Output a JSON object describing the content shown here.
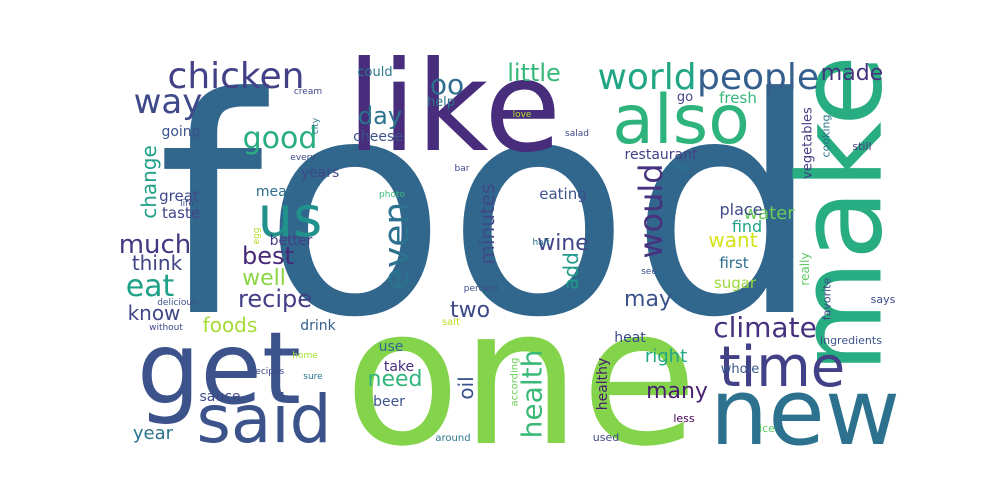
{
  "wordcloud": {
    "words": [
      {
        "text": "food",
        "color": "#31668d"
      },
      {
        "text": "one",
        "color": "#84d44b"
      },
      {
        "text": "like",
        "color": "#472d7b"
      },
      {
        "text": "make",
        "color": "#27ad81"
      },
      {
        "text": "get",
        "color": "#3b528b"
      },
      {
        "text": "new",
        "color": "#2c728e"
      },
      {
        "text": "also",
        "color": "#2eb37c"
      },
      {
        "text": "said",
        "color": "#3b528b"
      },
      {
        "text": "time",
        "color": "#424086"
      },
      {
        "text": "us",
        "color": "#21918c"
      },
      {
        "text": "world",
        "color": "#21a685"
      },
      {
        "text": "people",
        "color": "#355f8d"
      },
      {
        "text": "chicken",
        "color": "#424086"
      },
      {
        "text": "way",
        "color": "#3e4989"
      },
      {
        "text": "good",
        "color": "#28ae80"
      },
      {
        "text": "even",
        "color": "#2c728e"
      },
      {
        "text": "would",
        "color": "#46327e"
      },
      {
        "text": "health",
        "color": "#3aba76"
      },
      {
        "text": "climate",
        "color": "#46327e"
      },
      {
        "text": "eat",
        "color": "#1fa188"
      },
      {
        "text": "much",
        "color": "#453882"
      },
      {
        "text": "best",
        "color": "#482878"
      },
      {
        "text": "recipe",
        "color": "#433e85"
      },
      {
        "text": "little",
        "color": "#37b878"
      },
      {
        "text": "made",
        "color": "#46327e"
      },
      {
        "text": "oo",
        "color": "#2f6c8e"
      },
      {
        "text": "day",
        "color": "#2c728e"
      },
      {
        "text": "wine",
        "color": "#404688"
      },
      {
        "text": "minutes",
        "color": "#3e4989"
      },
      {
        "text": "add",
        "color": "#1f998a"
      },
      {
        "text": "two",
        "color": "#3e4989"
      },
      {
        "text": "may",
        "color": "#3b528b"
      },
      {
        "text": "think",
        "color": "#414487"
      },
      {
        "text": "well",
        "color": "#8bd646"
      },
      {
        "text": "know",
        "color": "#3f4788"
      },
      {
        "text": "foods",
        "color": "#a5db36"
      },
      {
        "text": "change",
        "color": "#1fa088"
      },
      {
        "text": "water",
        "color": "#6ccd5a"
      },
      {
        "text": "want",
        "color": "#d5e21a"
      },
      {
        "text": "need",
        "color": "#31b57b"
      },
      {
        "text": "many",
        "color": "#481f70"
      },
      {
        "text": "oil",
        "color": "#3b528b"
      },
      {
        "text": "year",
        "color": "#2c728e"
      },
      {
        "text": "right",
        "color": "#22a785"
      },
      {
        "text": "place",
        "color": "#3e4a89"
      },
      {
        "text": "find",
        "color": "#20a386"
      },
      {
        "text": "first",
        "color": "#2e6f8e"
      },
      {
        "text": "sugar",
        "color": "#9dd93b"
      },
      {
        "text": "eating",
        "color": "#3b528b"
      },
      {
        "text": "great",
        "color": "#3e4989"
      },
      {
        "text": "taste",
        "color": "#414487"
      },
      {
        "text": "restaurant",
        "color": "#424186"
      },
      {
        "text": "years",
        "color": "#3f4889"
      },
      {
        "text": "meat",
        "color": "#2d708e"
      },
      {
        "text": "better",
        "color": "#433e85"
      },
      {
        "text": "going",
        "color": "#3b528b"
      },
      {
        "text": "cheese",
        "color": "#3b528b"
      },
      {
        "text": "could",
        "color": "#2a788e"
      },
      {
        "text": "help",
        "color": "#2d718e"
      },
      {
        "text": "fresh",
        "color": "#35b779"
      },
      {
        "text": "go",
        "color": "#414487"
      },
      {
        "text": "drink",
        "color": "#355f8d"
      },
      {
        "text": "heat",
        "color": "#3e4989"
      },
      {
        "text": "use",
        "color": "#31688e"
      },
      {
        "text": "take",
        "color": "#472f7d"
      },
      {
        "text": "beer",
        "color": "#3b528b"
      },
      {
        "text": "sauce",
        "color": "#3e4989"
      },
      {
        "text": "healthy",
        "color": "#481b6d"
      },
      {
        "text": "whole",
        "color": "#38598c"
      },
      {
        "text": "vegetables",
        "color": "#433e85"
      },
      {
        "text": "really",
        "color": "#5ec962"
      },
      {
        "text": "cooking",
        "color": "#2a768e"
      },
      {
        "text": "still",
        "color": "#443b84"
      },
      {
        "text": "favorite",
        "color": "#3e4989"
      },
      {
        "text": "says",
        "color": "#3e4989"
      },
      {
        "text": "ingredients",
        "color": "#3b528b"
      },
      {
        "text": "less",
        "color": "#440154"
      },
      {
        "text": "ice",
        "color": "#5ec962"
      },
      {
        "text": "used",
        "color": "#3e4989"
      },
      {
        "text": "according",
        "color": "#6ece58"
      },
      {
        "text": "around",
        "color": "#2a788e"
      },
      {
        "text": "salt",
        "color": "#c0df25"
      },
      {
        "text": "percent",
        "color": "#3e4989"
      },
      {
        "text": "see",
        "color": "#39568c"
      },
      {
        "text": "half",
        "color": "#2d708e"
      },
      {
        "text": "big",
        "color": "#2a788e"
      },
      {
        "text": "bar",
        "color": "#3e4989"
      },
      {
        "text": "photo",
        "color": "#3aba76"
      },
      {
        "text": "egg",
        "color": "#b5de2b"
      },
      {
        "text": "salad",
        "color": "#3e4989"
      },
      {
        "text": "love",
        "color": "#b5de2b"
      },
      {
        "text": "city",
        "color": "#2a788e"
      },
      {
        "text": "cream",
        "color": "#3e4989"
      },
      {
        "text": "every",
        "color": "#3e4989"
      },
      {
        "text": "life",
        "color": "#3e4989"
      },
      {
        "text": "delicious",
        "color": "#3b528b"
      },
      {
        "text": "without",
        "color": "#3e4989"
      },
      {
        "text": "home",
        "color": "#a5db36"
      },
      {
        "text": "sure",
        "color": "#2a788e"
      },
      {
        "text": "recipes",
        "color": "#3e4989"
      }
    ]
  }
}
